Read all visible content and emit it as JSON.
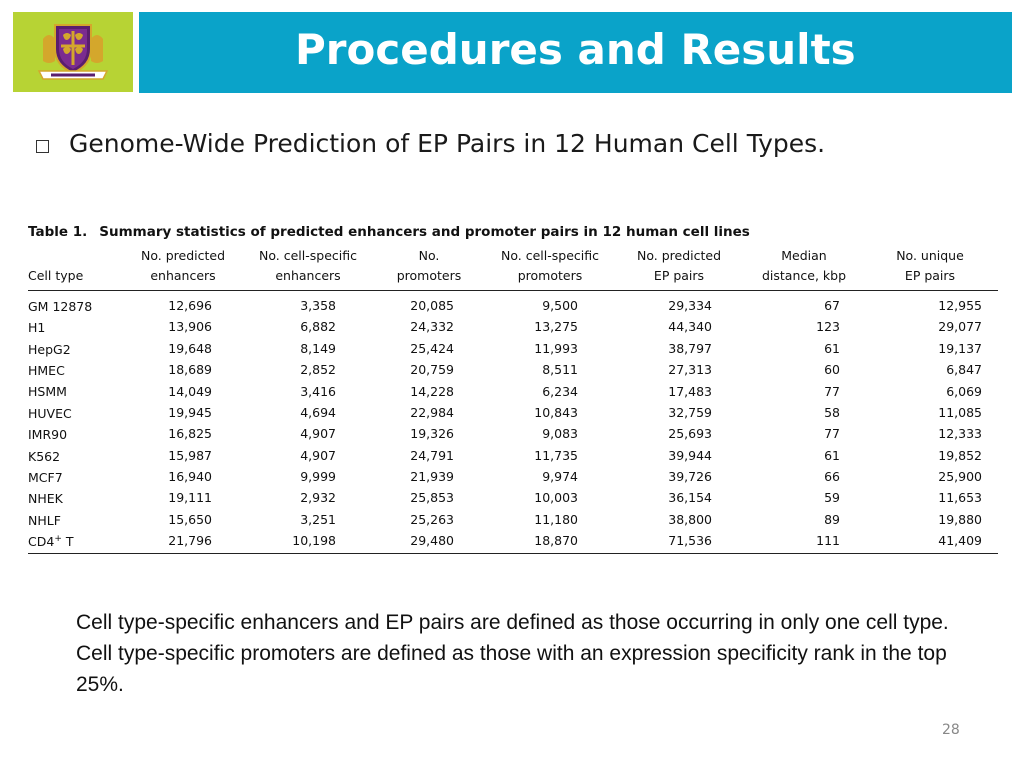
{
  "header": {
    "title": "Procedures and Results",
    "logo_icon": "university-crest-icon",
    "logo_bg": "#b7d334",
    "title_bg": "#0aa3c9"
  },
  "bullet": {
    "icon": "hollow-square-bullet-icon",
    "text": "Genome-Wide Prediction of EP Pairs in 12 Human Cell Types."
  },
  "table": {
    "label": "Table 1.",
    "caption": "Summary statistics of predicted enhancers and promoter pairs in 12 human cell lines",
    "columns": [
      {
        "line1": "",
        "line2": "Cell type"
      },
      {
        "line1": "No. predicted",
        "line2": "enhancers"
      },
      {
        "line1": "No. cell-specific",
        "line2": "enhancers"
      },
      {
        "line1": "No.",
        "line2": "promoters"
      },
      {
        "line1": "No. cell-specific",
        "line2": "promoters"
      },
      {
        "line1": "No. predicted",
        "line2": "EP pairs"
      },
      {
        "line1": "Median",
        "line2": "distance, kbp"
      },
      {
        "line1": "No. unique",
        "line2": "EP pairs"
      }
    ],
    "rows": [
      {
        "cell": "GM 12878",
        "sup": "",
        "cell_suffix": "",
        "values": [
          "12,696",
          "3,358",
          "20,085",
          "9,500",
          "29,334",
          "67",
          "12,955"
        ]
      },
      {
        "cell": "H1",
        "sup": "",
        "cell_suffix": "",
        "values": [
          "13,906",
          "6,882",
          "24,332",
          "13,275",
          "44,340",
          "123",
          "29,077"
        ]
      },
      {
        "cell": "HepG2",
        "sup": "",
        "cell_suffix": "",
        "values": [
          "19,648",
          "8,149",
          "25,424",
          "11,993",
          "38,797",
          "61",
          "19,137"
        ]
      },
      {
        "cell": "HMEC",
        "sup": "",
        "cell_suffix": "",
        "values": [
          "18,689",
          "2,852",
          "20,759",
          "8,511",
          "27,313",
          "60",
          "6,847"
        ]
      },
      {
        "cell": "HSMM",
        "sup": "",
        "cell_suffix": "",
        "values": [
          "14,049",
          "3,416",
          "14,228",
          "6,234",
          "17,483",
          "77",
          "6,069"
        ]
      },
      {
        "cell": "HUVEC",
        "sup": "",
        "cell_suffix": "",
        "values": [
          "19,945",
          "4,694",
          "22,984",
          "10,843",
          "32,759",
          "58",
          "11,085"
        ]
      },
      {
        "cell": "IMR90",
        "sup": "",
        "cell_suffix": "",
        "values": [
          "16,825",
          "4,907",
          "19,326",
          "9,083",
          "25,693",
          "77",
          "12,333"
        ]
      },
      {
        "cell": "K562",
        "sup": "",
        "cell_suffix": "",
        "values": [
          "15,987",
          "4,907",
          "24,791",
          "11,735",
          "39,944",
          "61",
          "19,852"
        ]
      },
      {
        "cell": "MCF7",
        "sup": "",
        "cell_suffix": "",
        "values": [
          "16,940",
          "9,999",
          "21,939",
          "9,974",
          "39,726",
          "66",
          "25,900"
        ]
      },
      {
        "cell": "NHEK",
        "sup": "",
        "cell_suffix": "",
        "values": [
          "19,111",
          "2,932",
          "25,853",
          "10,003",
          "36,154",
          "59",
          "11,653"
        ]
      },
      {
        "cell": "NHLF",
        "sup": "",
        "cell_suffix": "",
        "values": [
          "15,650",
          "3,251",
          "25,263",
          "11,180",
          "38,800",
          "89",
          "19,880"
        ]
      },
      {
        "cell": "CD4",
        "sup": "+",
        "cell_suffix": " T",
        "values": [
          "21,796",
          "10,198",
          "29,480",
          "18,870",
          "71,536",
          "111",
          "41,409"
        ]
      }
    ]
  },
  "note": "Cell type-specific enhancers and EP pairs are defined as those occurring in only one cell type. Cell type-specific promoters are defined as those with an expression specificity rank in the top 25%.",
  "page_number": "28"
}
